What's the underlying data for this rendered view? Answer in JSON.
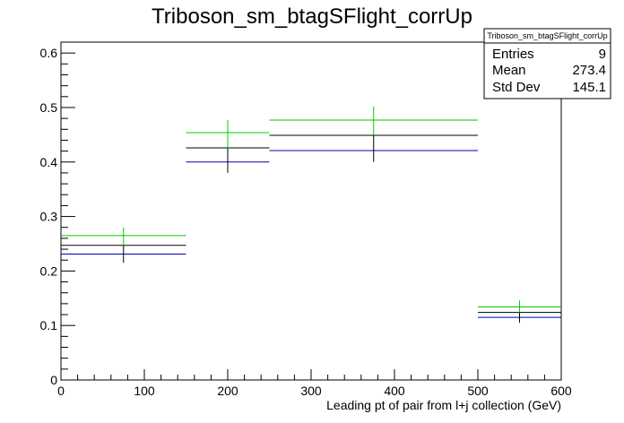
{
  "chart_data": {
    "type": "histogram",
    "title": "Triboson_sm_btagSFlight_corrUp",
    "xlabel": "Leading pt of pair from l+j collection (GeV)",
    "ylabel": "",
    "xlim": [
      0,
      600
    ],
    "ylim": [
      0,
      0.62
    ],
    "x_ticks": [
      "0",
      "100",
      "200",
      "300",
      "400",
      "500",
      "600"
    ],
    "y_ticks": [
      "0",
      "0.1",
      "0.2",
      "0.3",
      "0.4",
      "0.5",
      "0.6"
    ],
    "grid": false,
    "bins": [
      [
        0,
        150
      ],
      [
        150,
        250
      ],
      [
        250,
        500
      ],
      [
        500,
        600
      ]
    ],
    "nominal": {
      "color": "#000000",
      "values": [
        0.247,
        0.426,
        0.449,
        0.124
      ],
      "err_low": [
        0.215,
        0.38,
        0.4,
        0.105
      ],
      "err_high": [
        0.28,
        0.477,
        0.502,
        0.146
      ]
    },
    "variations": [
      {
        "color": "#00cc00",
        "values": [
          0.265,
          0.454,
          0.477,
          0.134
        ]
      },
      {
        "color": "#0000aa",
        "values": [
          0.231,
          0.4,
          0.421,
          0.115
        ]
      }
    ],
    "stats_box": {
      "title": "Triboson_sm_btagSFlight_corrUp",
      "rows": [
        {
          "label": "Entries",
          "value": "9"
        },
        {
          "label": "Mean",
          "value": "273.4"
        },
        {
          "label": "Std Dev",
          "value": "145.1"
        }
      ]
    }
  }
}
